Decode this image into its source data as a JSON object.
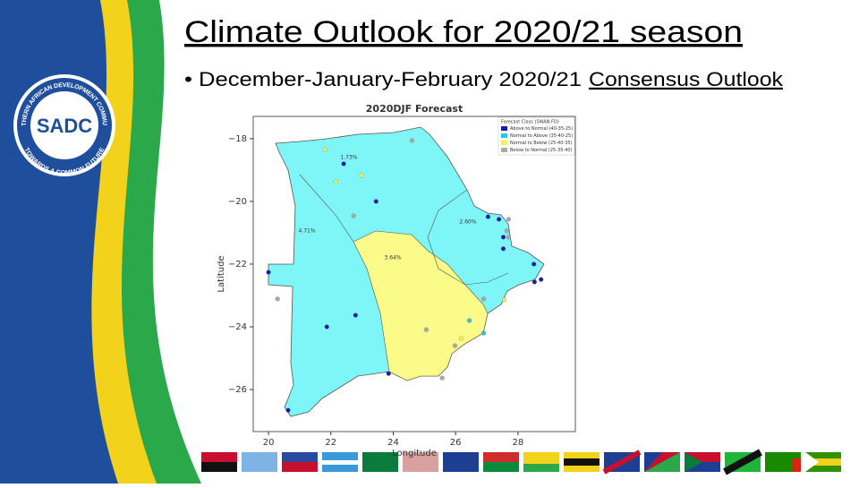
{
  "slide": {
    "title": "Climate Outlook for 2020/21 season",
    "bullet": "• December-January-February 2020/21",
    "bullet_link": "Consensus Outlook",
    "logo": {
      "name": "SADC",
      "ring_top": "SOUTHERN AFRICAN DEVELOPMENT COMMUNITY",
      "ring_bottom": "TOWARDS A COMMON FUTURE"
    }
  },
  "chart_data": {
    "type": "scatter",
    "title": "2020DJF Forecast",
    "x_label": "Longitude",
    "y_label": "Latitude",
    "xlim": [
      19.51,
      29.84
    ],
    "ylim": [
      -27.34,
      -17.29
    ],
    "xticks": [
      20,
      22,
      24,
      26,
      28
    ],
    "yticks": [
      {
        "value": -18,
        "label": "−18"
      },
      {
        "value": -20,
        "label": "−20"
      },
      {
        "value": -22,
        "label": "−22"
      },
      {
        "value": -24,
        "label": "−24"
      },
      {
        "value": -26,
        "label": "−26"
      }
    ],
    "legend_title": "Forecast Class (SWAN FD)",
    "legend_position": "upper right",
    "annotations": [
      "1.73%",
      "4.71%",
      "2.60%",
      "3.64%"
    ],
    "series": [
      {
        "name": "Above to Normal (40-35-25)",
        "color": "#1c1ca8",
        "x": [
          22.41,
          23.45,
          20.0,
          21.87,
          22.79,
          23.85,
          20.63,
          27.04,
          27.39,
          27.53,
          27.53,
          28.51,
          28.53,
          28.74
        ],
        "y": [
          -18.8,
          -20.0,
          -22.26,
          -24.0,
          -23.63,
          -25.49,
          -26.66,
          -20.49,
          -20.57,
          -21.14,
          -21.51,
          -22.0,
          -22.57,
          -22.49
        ]
      },
      {
        "name": "Normal to Above (35-40-25)",
        "color": "#2fc7d8",
        "x": [
          26.44,
          26.9
        ],
        "y": [
          -23.8,
          -24.2
        ]
      },
      {
        "name": "Normal to Below (25-40-35)",
        "color": "#f4f05a",
        "x": [
          21.81,
          22.99,
          22.16,
          27.56,
          26.18
        ],
        "y": [
          -18.34,
          -19.17,
          -19.37,
          -23.14,
          -24.37
        ]
      },
      {
        "name": "Below to Normal (25-35-40)",
        "color": "#aaaaaa",
        "x": [
          24.6,
          22.73,
          20.29,
          25.06,
          25.57,
          25.98,
          26.9,
          27.7,
          27.64,
          27.7
        ],
        "y": [
          -18.06,
          -20.46,
          -23.11,
          -24.09,
          -25.63,
          -24.6,
          -23.11,
          -20.57,
          -20.94,
          -21.14
        ]
      }
    ]
  }
}
